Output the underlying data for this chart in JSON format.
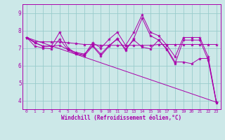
{
  "xlabel": "Windchill (Refroidissement éolien,°C)",
  "bg_color": "#cce8e8",
  "plot_bg_color": "#cce8e8",
  "line_color": "#aa00aa",
  "grid_color": "#99cccc",
  "x_ticks": [
    0,
    1,
    2,
    3,
    4,
    5,
    6,
    7,
    8,
    9,
    10,
    11,
    12,
    13,
    14,
    15,
    16,
    17,
    18,
    19,
    20,
    21,
    22,
    23
  ],
  "ylim": [
    3.5,
    9.5
  ],
  "xlim": [
    -0.5,
    23.5
  ],
  "series": [
    [
      7.6,
      7.3,
      7.1,
      7.1,
      7.9,
      7.0,
      6.7,
      6.6,
      7.3,
      7.0,
      7.5,
      7.9,
      7.15,
      7.9,
      8.9,
      7.9,
      7.7,
      7.15,
      6.5,
      7.6,
      7.6,
      7.6,
      6.5,
      3.9
    ],
    [
      7.6,
      7.3,
      7.1,
      7.1,
      7.15,
      6.9,
      6.75,
      6.65,
      7.15,
      6.65,
      7.15,
      7.5,
      6.95,
      7.45,
      7.05,
      6.95,
      7.45,
      6.95,
      6.2,
      6.2,
      6.1,
      6.4,
      6.4,
      3.9
    ],
    [
      7.6,
      7.35,
      7.35,
      7.35,
      7.35,
      7.3,
      7.25,
      7.2,
      7.2,
      7.15,
      7.15,
      7.15,
      7.15,
      7.15,
      7.15,
      7.15,
      7.2,
      7.2,
      7.2,
      7.2,
      7.2,
      7.2,
      7.2,
      7.2
    ],
    [
      7.6,
      7.1,
      7.0,
      6.95,
      7.5,
      6.9,
      6.65,
      6.55,
      7.1,
      6.55,
      7.1,
      7.55,
      6.85,
      7.55,
      8.7,
      7.7,
      7.45,
      6.9,
      6.1,
      7.45,
      7.45,
      7.45,
      6.3,
      3.85
    ]
  ],
  "straight_line": [
    [
      0,
      7.6
    ],
    [
      23,
      3.9
    ]
  ]
}
